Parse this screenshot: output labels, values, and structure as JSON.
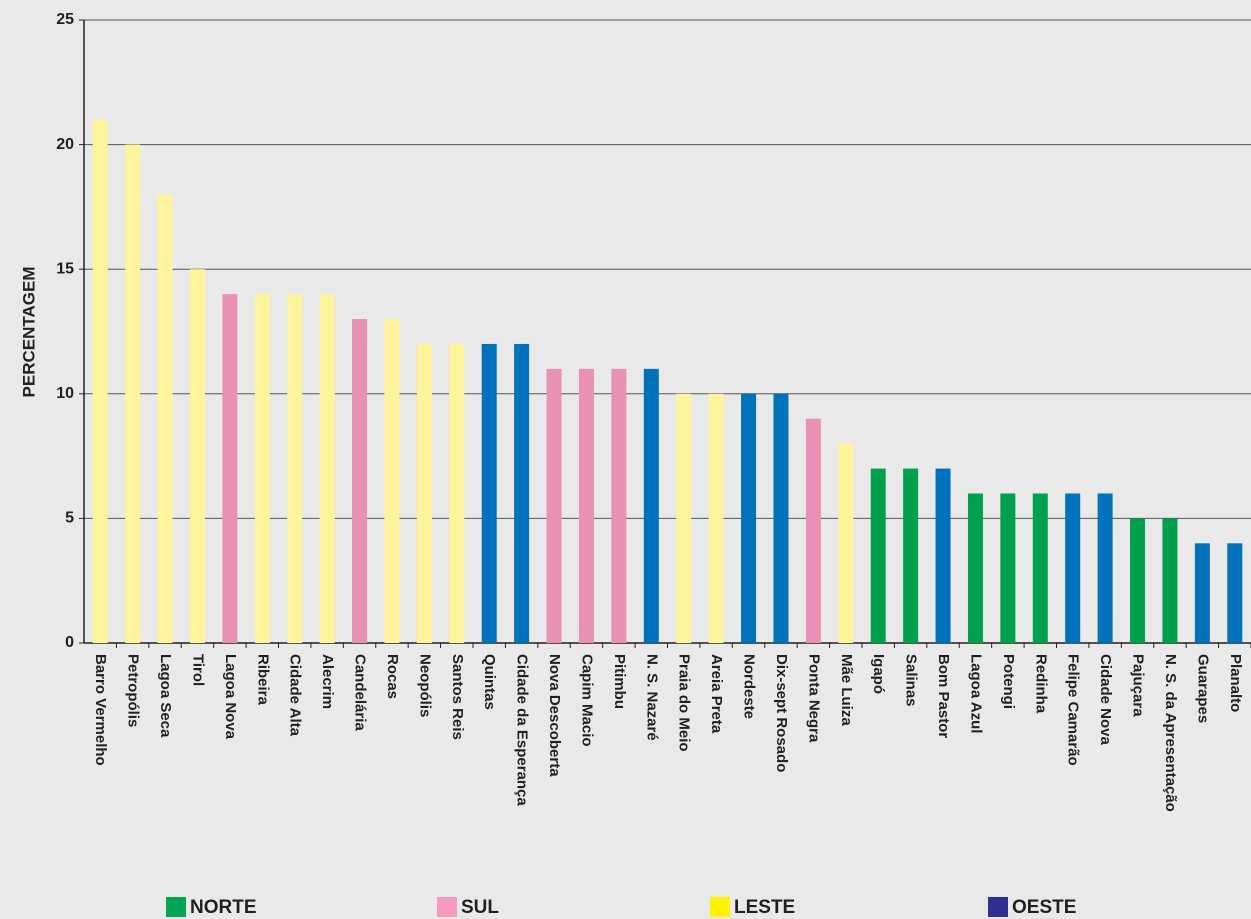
{
  "chart_data": {
    "type": "bar",
    "y_label": "PERCENTAGEM",
    "categories": [
      "Barro Vermelho",
      "Petropólis",
      "Lagoa Seca",
      "Tirol",
      "Lagoa Nova",
      "Ribeira",
      "Cidade Alta",
      "Alecrim",
      "Candelária",
      "Rocas",
      "Neopólis",
      "Santos Reis",
      "Quintas",
      "Cidade da Esperança",
      "Nova Descoberta",
      "Capim Macio",
      "Pitimbu",
      "N. S. Nazaré",
      "Praia do Meio",
      "Areia Preta",
      "Nordeste",
      "Dix-sept Rosado",
      "Ponta Negra",
      "Mãe Luiza",
      "Igapó",
      "Salinas",
      "Bom Pastor",
      "Lagoa Azul",
      "Potengi",
      "Redinha",
      "Felipe Camarão",
      "Cidade Nova",
      "Pajuçara",
      "N. S. da Apresentação",
      "Guarapes",
      "Planalto"
    ],
    "series": [
      {
        "name": "NORTE",
        "color": "#00a04e",
        "legend_color": "#00a651",
        "values": [
          null,
          null,
          null,
          null,
          null,
          null,
          null,
          null,
          null,
          null,
          null,
          null,
          null,
          null,
          null,
          null,
          null,
          null,
          null,
          null,
          null,
          null,
          null,
          null,
          7,
          7,
          null,
          6,
          6,
          6,
          null,
          null,
          5,
          5,
          null,
          null
        ]
      },
      {
        "name": "SUL",
        "color": "#e891b5",
        "legend_color": "#f49ac1",
        "values": [
          null,
          null,
          null,
          null,
          14,
          null,
          null,
          null,
          13,
          null,
          null,
          null,
          null,
          null,
          11,
          11,
          11,
          null,
          null,
          null,
          null,
          null,
          9,
          null,
          null,
          null,
          null,
          null,
          null,
          null,
          null,
          null,
          null,
          null,
          null,
          null
        ]
      },
      {
        "name": "LESTE",
        "color": "#fff39c",
        "legend_color": "#fff200",
        "values": [
          21,
          20,
          18,
          15,
          null,
          14,
          14,
          14,
          null,
          13,
          12,
          12,
          null,
          null,
          null,
          null,
          null,
          null,
          10,
          10,
          null,
          null,
          null,
          8,
          null,
          null,
          null,
          null,
          null,
          null,
          null,
          null,
          null,
          null,
          null,
          null
        ]
      },
      {
        "name": "OESTE",
        "color": "#0072bc",
        "legend_color": "#2e3192",
        "values": [
          null,
          null,
          null,
          null,
          null,
          null,
          null,
          null,
          null,
          null,
          null,
          null,
          12,
          12,
          null,
          null,
          null,
          11,
          null,
          null,
          10,
          10,
          null,
          null,
          null,
          null,
          7,
          null,
          null,
          null,
          6,
          6,
          null,
          null,
          4,
          4
        ]
      }
    ],
    "ylim": [
      0,
      25
    ],
    "yticks": [
      0,
      5,
      10,
      15,
      20,
      25
    ],
    "grid": true
  }
}
